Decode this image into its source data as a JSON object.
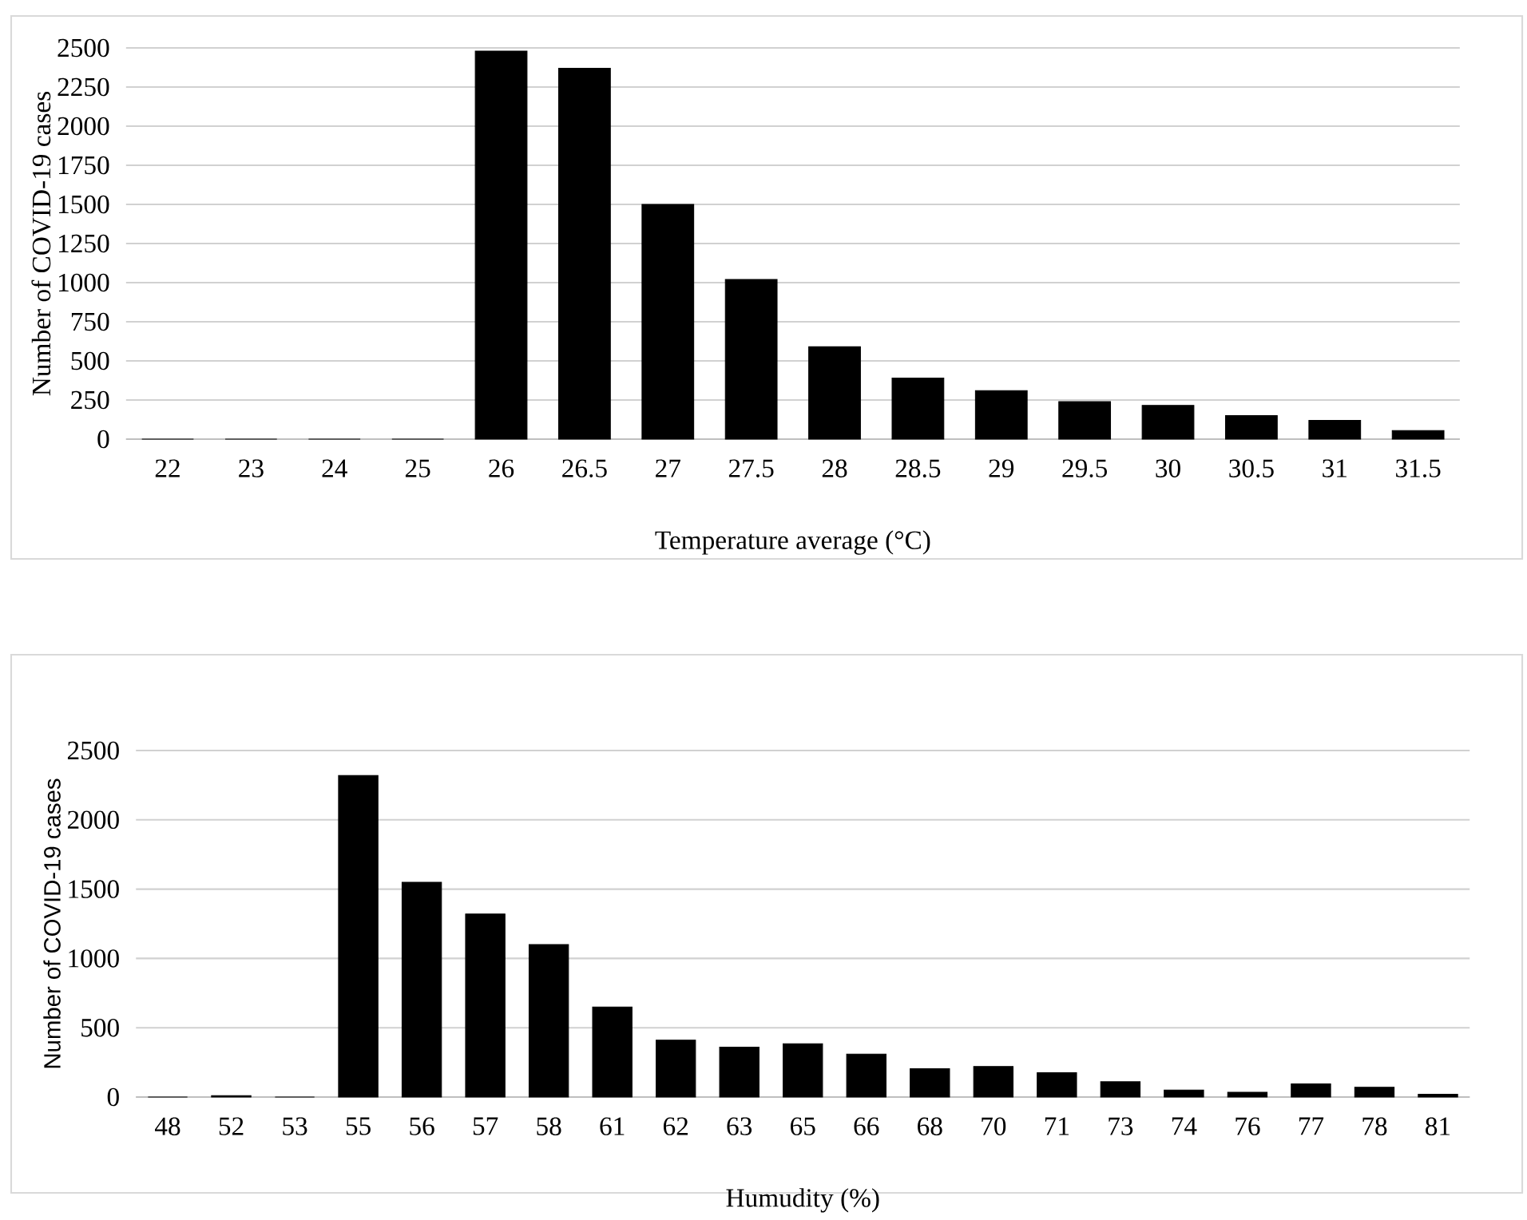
{
  "chart_data": [
    {
      "type": "bar",
      "xlabel": "Temperature average (°C)",
      "ylabel": "Number of COVID-19 cases",
      "color": "#000000",
      "grid": "y",
      "categories": [
        "22",
        "23",
        "24",
        "25",
        "26",
        "26.5",
        "27",
        "27.5",
        "28",
        "28.5",
        "29",
        "29.5",
        "30",
        "30.5",
        "31",
        "31.5"
      ],
      "values": [
        0,
        0,
        0,
        0,
        2480,
        2370,
        1500,
        1020,
        590,
        390,
        310,
        240,
        215,
        150,
        120,
        55
      ],
      "ylim": [
        0,
        2500
      ],
      "yticks": [
        0,
        250,
        500,
        750,
        1000,
        1250,
        1500,
        1750,
        2000,
        2250,
        2500
      ]
    },
    {
      "type": "bar",
      "xlabel": "Humudity (%)",
      "ylabel": "Number of COVID-19 cases",
      "color": "#000000",
      "grid": "y",
      "categories": [
        "48",
        "52",
        "53",
        "55",
        "56",
        "57",
        "58",
        "61",
        "62",
        "63",
        "65",
        "66",
        "68",
        "70",
        "71",
        "73",
        "74",
        "76",
        "77",
        "78",
        "81"
      ],
      "values": [
        0,
        10,
        0,
        2320,
        1550,
        1320,
        1100,
        650,
        410,
        360,
        385,
        310,
        205,
        220,
        175,
        110,
        50,
        35,
        95,
        70,
        20
      ],
      "ylim": [
        0,
        2500
      ],
      "yticks": [
        0,
        500,
        1000,
        1500,
        2000,
        2500
      ]
    }
  ]
}
